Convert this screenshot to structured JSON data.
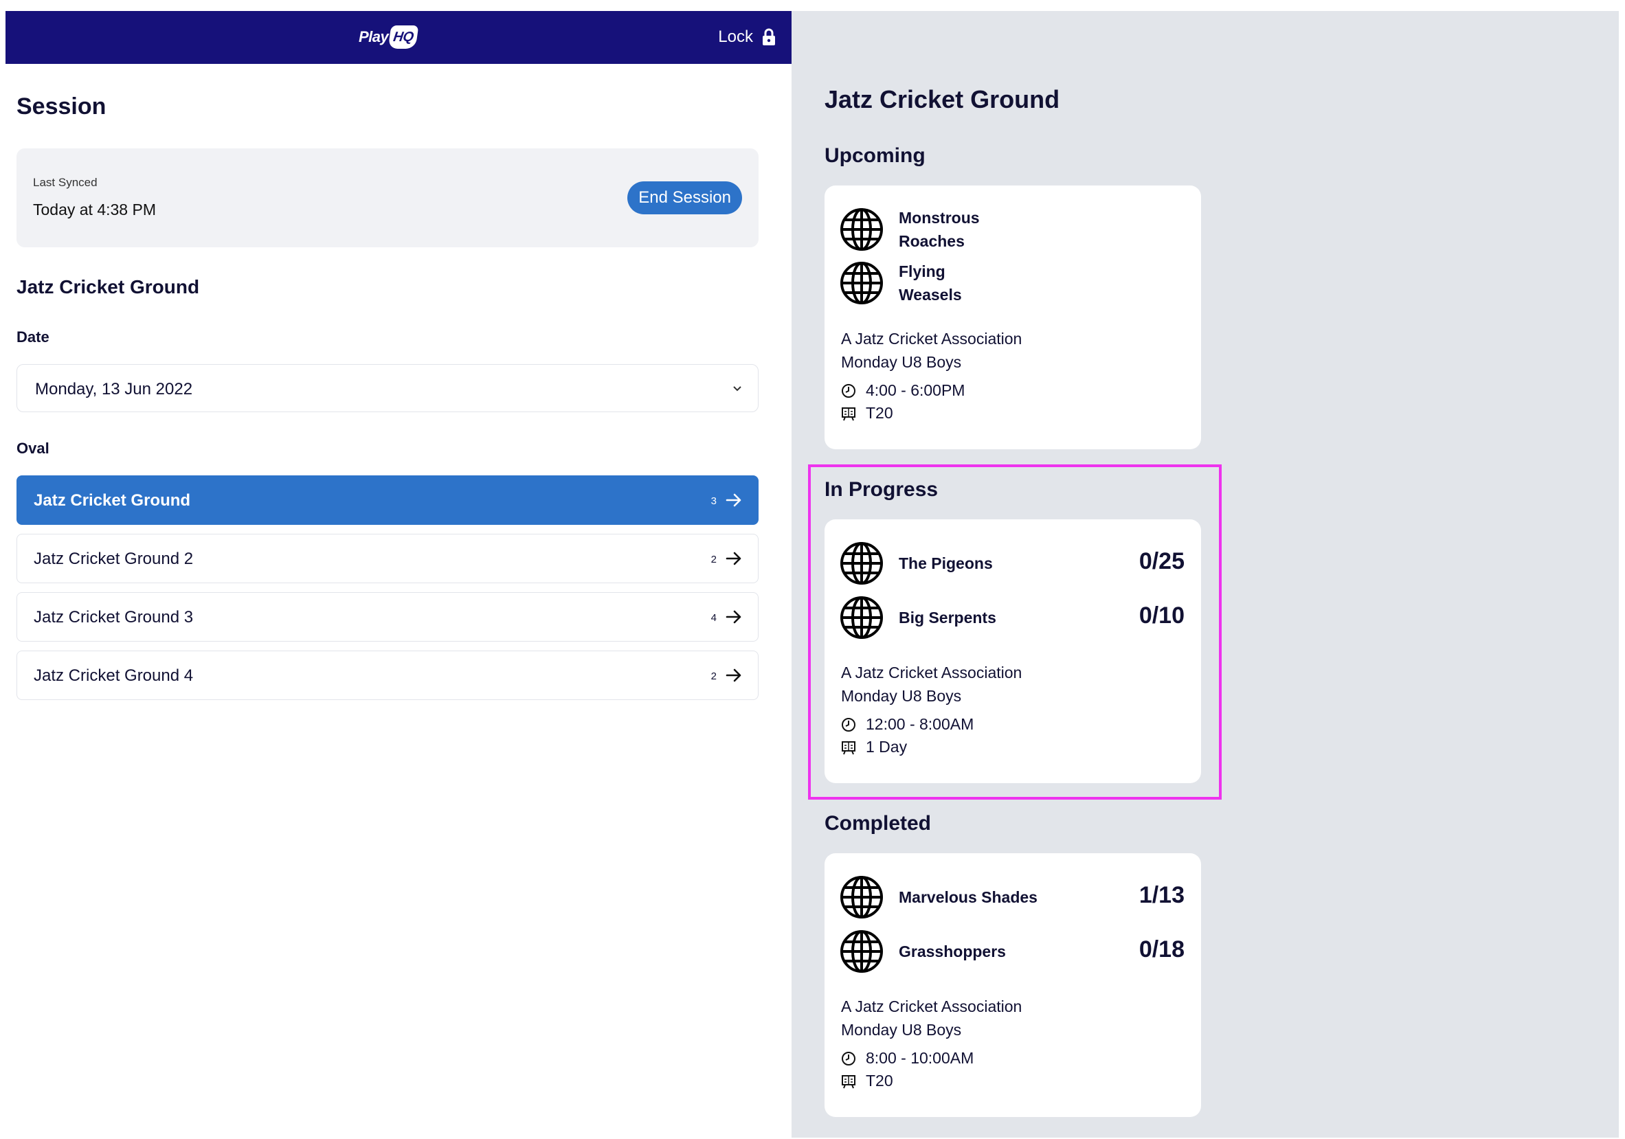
{
  "header": {
    "logo_text": "Play",
    "logo_badge": "HQ",
    "lock_label": "Lock"
  },
  "session": {
    "title": "Session",
    "last_synced_label": "Last Synced",
    "last_synced_value": "Today at 4:38 PM",
    "end_session_label": "End Session"
  },
  "filters": {
    "ground_title": "Jatz Cricket Ground",
    "date_label": "Date",
    "date_value": "Monday, 13 Jun 2022",
    "oval_label": "Oval"
  },
  "ovals": [
    {
      "name": "Jatz Cricket Ground",
      "count": "3",
      "active": true
    },
    {
      "name": "Jatz Cricket Ground 2",
      "count": "2",
      "active": false
    },
    {
      "name": "Jatz Cricket Ground 3",
      "count": "4",
      "active": false
    },
    {
      "name": "Jatz Cricket Ground 4",
      "count": "2",
      "active": false
    }
  ],
  "detail": {
    "title": "Jatz Cricket Ground",
    "upcoming": {
      "heading": "Upcoming",
      "team1": "Monstrous Roaches",
      "team2": "Flying Weasels",
      "association": "A Jatz Cricket Association",
      "grade": "Monday U8 Boys",
      "time": "4:00 - 6:00PM",
      "format": "T20"
    },
    "in_progress": {
      "heading": "In Progress",
      "team1": "The Pigeons",
      "score1": "0/25",
      "team2": "Big Serpents",
      "score2": "0/10",
      "association": "A Jatz Cricket Association",
      "grade": "Monday U8 Boys",
      "time": "12:00 - 8:00AM",
      "format": "1 Day"
    },
    "completed": {
      "heading": "Completed",
      "team1": "Marvelous Shades",
      "score1": "1/13",
      "team2": "Grasshoppers",
      "score2": "0/18",
      "association": "A Jatz Cricket Association",
      "grade": "Monday U8 Boys",
      "time": "8:00 - 10:00AM",
      "format": "T20"
    }
  },
  "colors": {
    "header_bg": "#16117a",
    "accent": "#2d73c9",
    "highlight": "#ee33ee"
  }
}
